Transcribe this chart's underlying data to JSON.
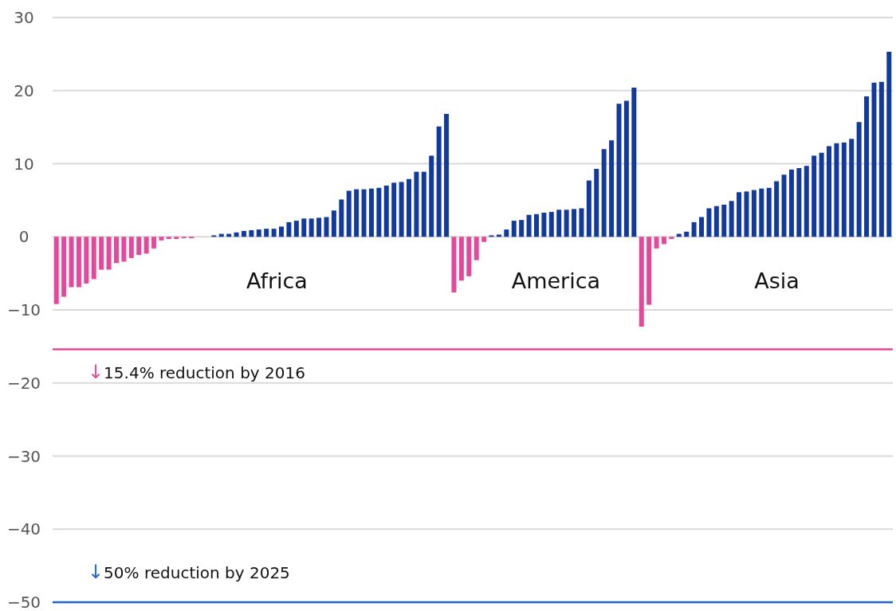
{
  "chart_data": {
    "type": "bar",
    "categories": [
      null,
      null,
      null,
      null,
      null,
      null,
      null,
      null,
      null,
      null,
      null,
      null,
      null,
      null,
      null,
      null,
      null,
      null,
      null,
      null,
      null,
      null,
      null,
      null,
      null,
      null,
      null,
      null,
      null,
      null,
      null,
      null,
      null,
      null,
      null,
      null,
      null,
      null,
      null,
      null,
      null,
      null,
      null,
      null,
      null,
      null,
      null,
      null,
      null,
      null,
      null,
      null,
      null,
      null,
      null,
      null,
      null,
      null,
      null,
      null,
      null,
      null,
      null,
      null,
      null,
      null,
      null,
      null,
      null,
      null,
      null,
      null,
      null,
      null,
      null,
      null,
      null,
      null,
      null,
      null,
      null,
      null,
      null,
      null,
      null,
      null,
      null,
      null,
      null,
      null,
      null,
      null,
      null,
      null,
      null,
      null,
      null,
      null,
      null,
      null,
      null,
      null,
      null,
      null,
      null,
      null,
      null,
      null,
      null,
      null,
      null,
      null
    ],
    "values": [
      -9.2,
      -8.2,
      -6.9,
      -6.9,
      -6.4,
      -5.8,
      -4.5,
      -4.5,
      -3.6,
      -3.4,
      -2.9,
      -2.5,
      -2.3,
      -1.6,
      -0.5,
      -0.3,
      -0.3,
      -0.2,
      -0.2,
      0,
      0,
      0.2,
      0.4,
      0.4,
      0.6,
      0.8,
      0.9,
      1.0,
      1.1,
      1.1,
      1.4,
      2.0,
      2.2,
      2.5,
      2.5,
      2.6,
      2.7,
      3.6,
      5.1,
      6.3,
      6.5,
      6.5,
      6.6,
      6.7,
      7.0,
      7.4,
      7.5,
      7.9,
      8.9,
      8.9,
      11.1,
      15.1,
      16.8,
      -7.6,
      -6.0,
      -5.4,
      -3.2,
      -0.7,
      0.2,
      0.3,
      1.0,
      2.2,
      2.3,
      3.0,
      3.1,
      3.3,
      3.4,
      3.7,
      3.7,
      3.8,
      3.9,
      7.7,
      9.3,
      12.0,
      13.2,
      18.2,
      18.6,
      20.4,
      -12.3,
      -9.3,
      -1.6,
      -1.0,
      -0.3,
      0.4,
      0.7,
      2.0,
      2.7,
      3.9,
      4.2,
      4.4,
      4.9,
      6.1,
      6.2,
      6.4,
      6.6,
      6.7,
      7.6,
      8.5,
      9.2,
      9.4,
      9.7,
      11.1,
      11.5,
      12.4,
      12.8,
      12.9,
      13.4,
      15.7,
      19.2,
      21.1,
      21.2,
      25.3
    ],
    "colors": [
      "#e5489a",
      "#e5489a",
      "#e5489a",
      "#e5489a",
      "#e5489a",
      "#e5489a",
      "#e5489a",
      "#e5489a",
      "#e5489a",
      "#e5489a",
      "#e5489a",
      "#e5489a",
      "#e5489a",
      "#e5489a",
      "#e5489a",
      "#e5489a",
      "#e5489a",
      "#e5489a",
      "#e5489a",
      "#123a9e",
      "#123a9e",
      "#123a9e",
      "#123a9e",
      "#123a9e",
      "#123a9e",
      "#123a9e",
      "#123a9e",
      "#123a9e",
      "#123a9e",
      "#123a9e",
      "#123a9e",
      "#123a9e",
      "#123a9e",
      "#123a9e",
      "#123a9e",
      "#123a9e",
      "#123a9e",
      "#123a9e",
      "#123a9e",
      "#123a9e",
      "#123a9e",
      "#123a9e",
      "#123a9e",
      "#123a9e",
      "#123a9e",
      "#123a9e",
      "#123a9e",
      "#123a9e",
      "#123a9e",
      "#123a9e",
      "#123a9e",
      "#123a9e",
      "#123a9e",
      "#e5489a",
      "#e5489a",
      "#e5489a",
      "#e5489a",
      "#e5489a",
      "#123a9e",
      "#123a9e",
      "#123a9e",
      "#123a9e",
      "#123a9e",
      "#123a9e",
      "#123a9e",
      "#123a9e",
      "#123a9e",
      "#123a9e",
      "#123a9e",
      "#123a9e",
      "#123a9e",
      "#123a9e",
      "#123a9e",
      "#123a9e",
      "#123a9e",
      "#123a9e",
      "#123a9e",
      "#123a9e",
      "#e5489a",
      "#e5489a",
      "#e5489a",
      "#e5489a",
      "#e5489a",
      "#123a9e",
      "#123a9e",
      "#123a9e",
      "#123a9e",
      "#123a9e",
      "#123a9e",
      "#123a9e",
      "#123a9e",
      "#123a9e",
      "#123a9e",
      "#123a9e",
      "#123a9e",
      "#123a9e",
      "#123a9e",
      "#123a9e",
      "#123a9e",
      "#123a9e",
      "#123a9e",
      "#123a9e",
      "#123a9e",
      "#123a9e",
      "#123a9e",
      "#123a9e",
      "#123a9e",
      "#123a9e",
      "#123a9e",
      "#123a9e",
      "#123a9e",
      "#123a9e"
    ],
    "ylim": [
      -50,
      30
    ],
    "yticks": [
      {
        "value": -50,
        "label": "−50"
      },
      {
        "value": -40,
        "label": "−40"
      },
      {
        "value": -30,
        "label": "−30"
      },
      {
        "value": -20,
        "label": "−20"
      },
      {
        "value": -10,
        "label": "−10"
      },
      0,
      10,
      20,
      30
    ],
    "grid": "y",
    "ref_lines": [
      {
        "axis": "y",
        "value": -15.4,
        "label": "↓15.4% reduction by 2016",
        "color": "#e5489a"
      },
      {
        "axis": "y",
        "value": -50,
        "label": "↓50% reduction by 2025",
        "color": "#1e64d8"
      }
    ],
    "annotations": [
      "Africa",
      "America",
      "Asia"
    ]
  }
}
